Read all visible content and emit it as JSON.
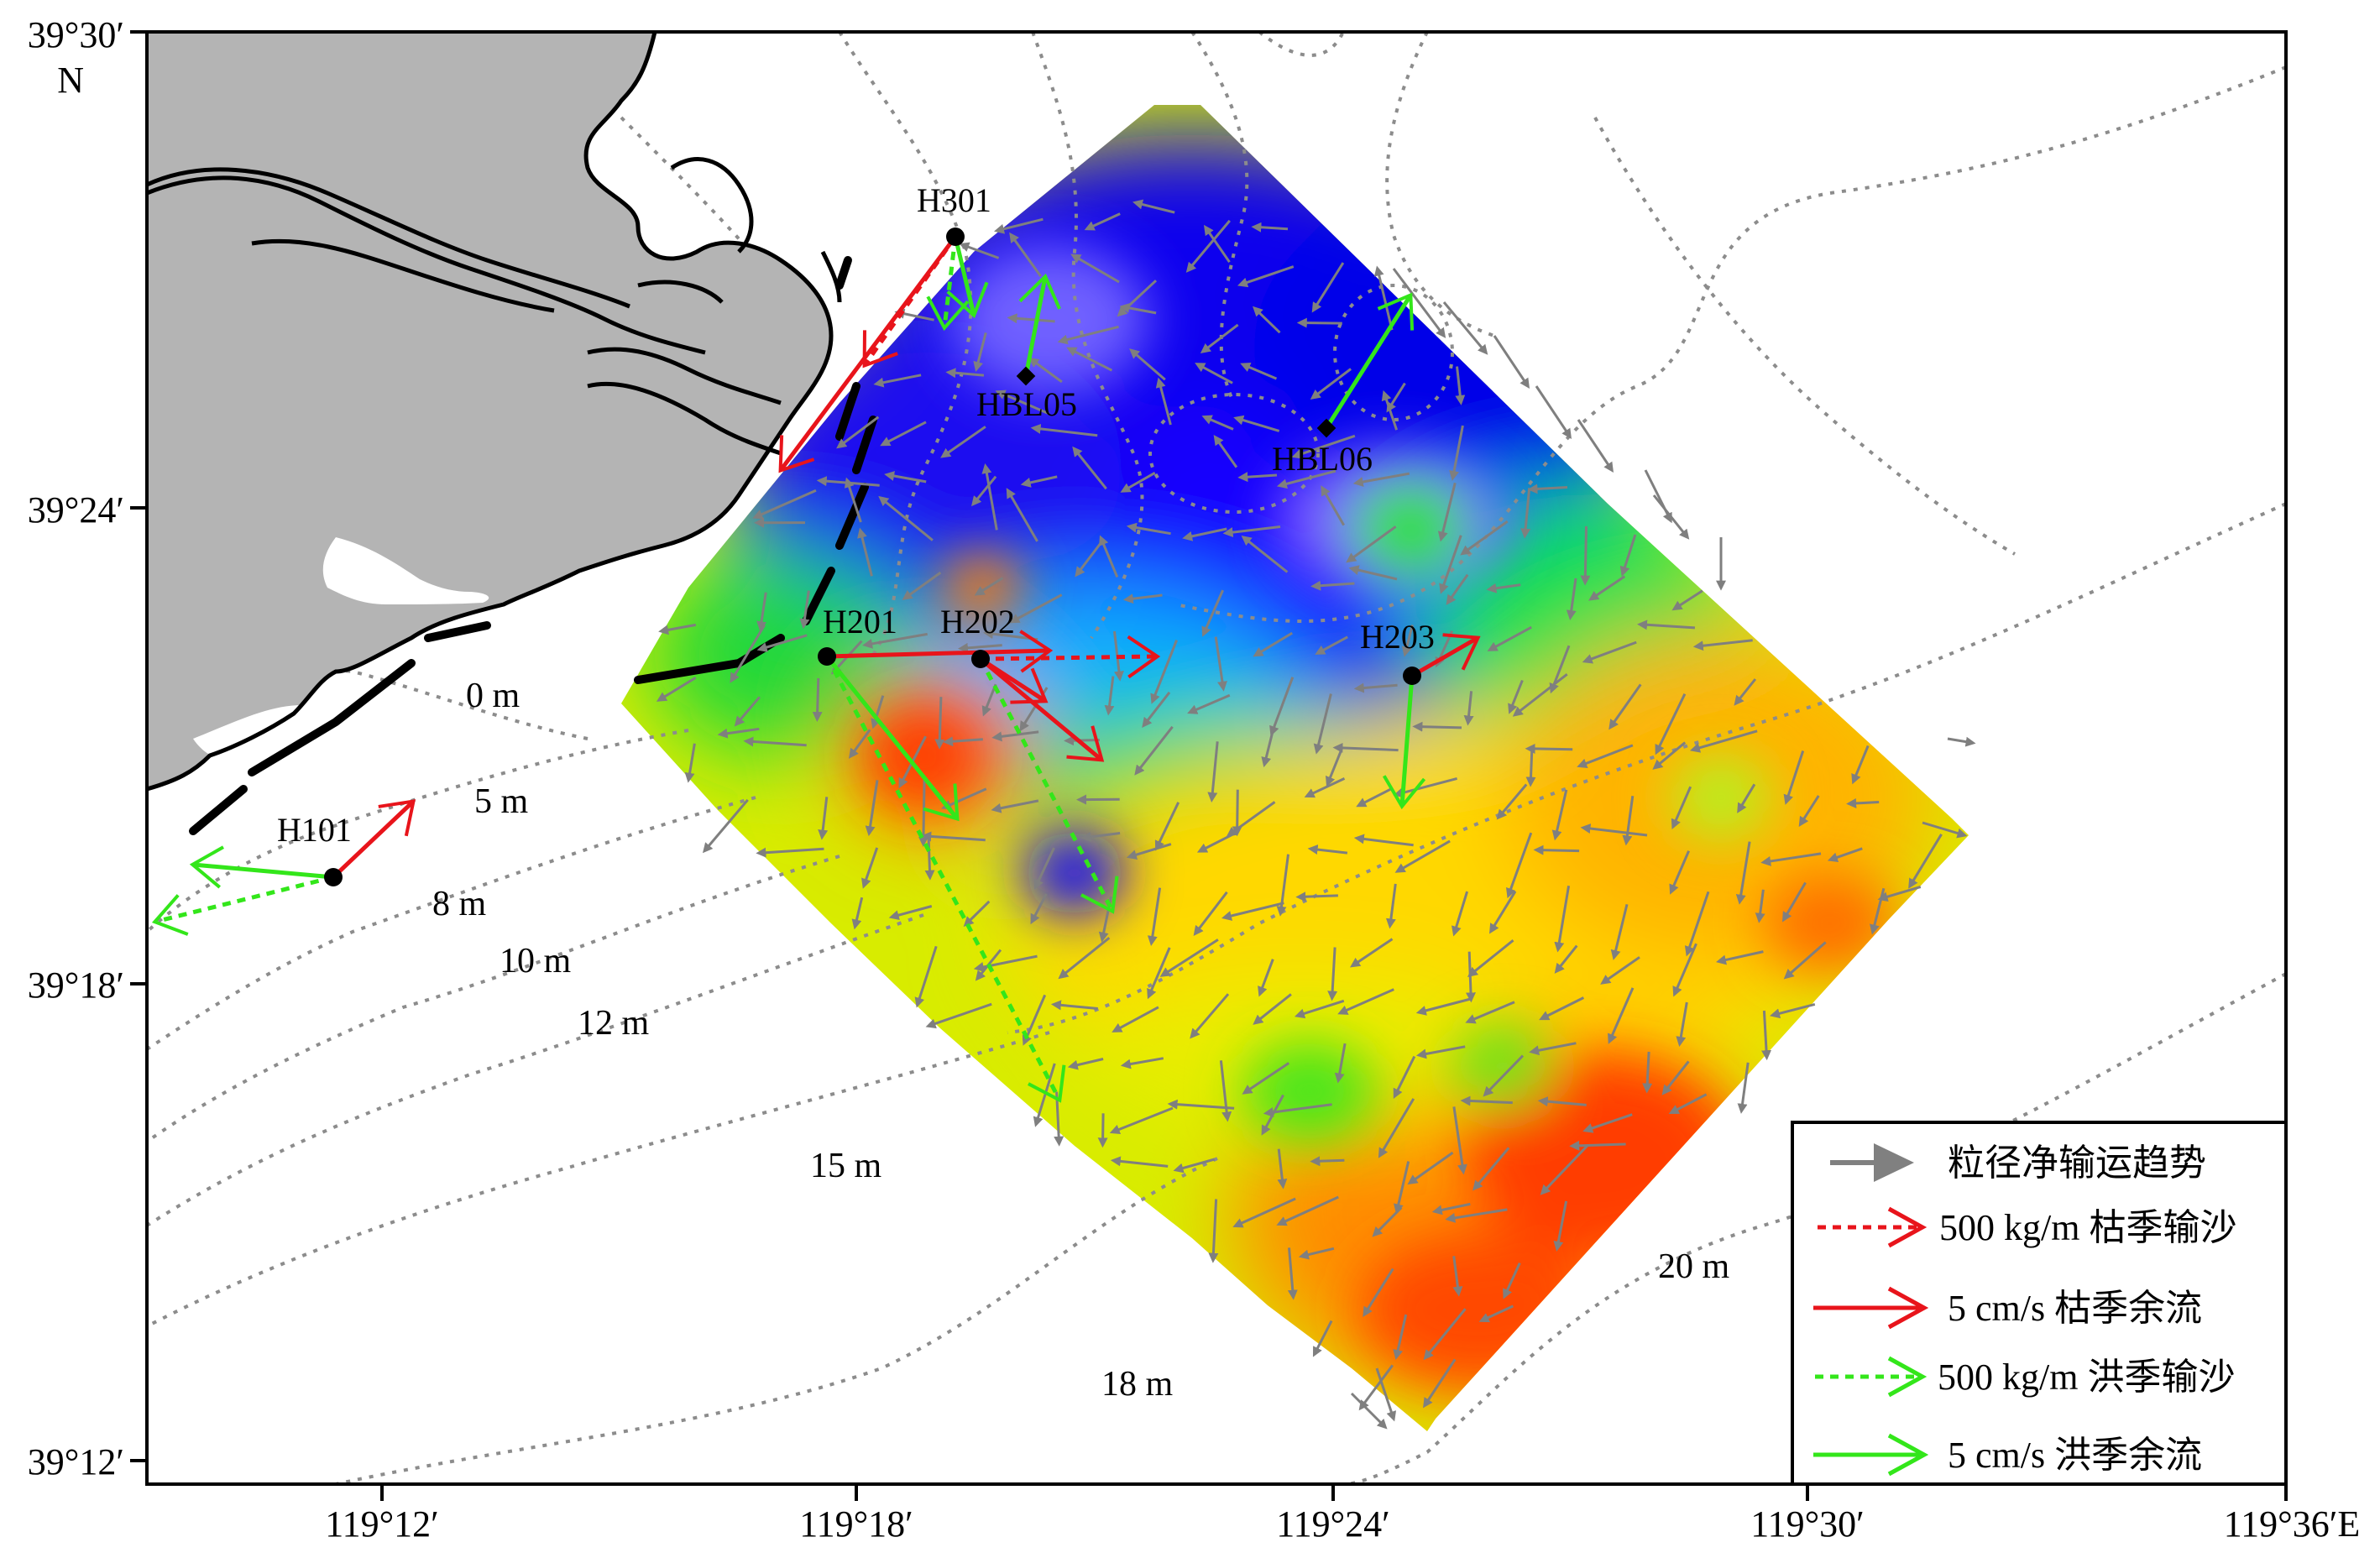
{
  "map": {
    "lon_ticks": [
      "119°12′",
      "119°18′",
      "119°24′",
      "119°30′",
      "119°36′E"
    ],
    "lat_ticks": [
      "39°30′",
      "39°24′",
      "39°18′",
      "39°12′"
    ],
    "lat_unit": "N",
    "depth_labels": [
      "0 m",
      "5 m",
      "8 m",
      "10 m",
      "12 m",
      "15 m",
      "18 m",
      "20 m"
    ],
    "stations": [
      "H301",
      "HBL05",
      "HBL06",
      "H201",
      "H202",
      "H203",
      "H101"
    ]
  },
  "legend": {
    "items": [
      {
        "label": "粒径净输运趋势",
        "color": "#808080",
        "style": "trend"
      },
      {
        "label": "500 kg/m 枯季输沙",
        "color": "#e8141b",
        "style": "dashed"
      },
      {
        "label": "5 cm/s 枯季余流",
        "color": "#e8141b",
        "style": "solid"
      },
      {
        "label": "500 kg/m 洪季输沙",
        "color": "#33e61a",
        "style": "dashed"
      },
      {
        "label": "5 cm/s 洪季余流",
        "color": "#33e61a",
        "style": "solid"
      }
    ]
  },
  "colors": {
    "land": "#b4b4b4",
    "coast": "#000000",
    "contour": "#8c8c8c",
    "trend_arrow": "#7f7f7f",
    "dry_season": "#e8141b",
    "flood_season": "#33e61a",
    "grain_scale": [
      "#0000f0",
      "#00ff00",
      "#ffff00",
      "#ff8c00",
      "#ff3c00"
    ]
  }
}
